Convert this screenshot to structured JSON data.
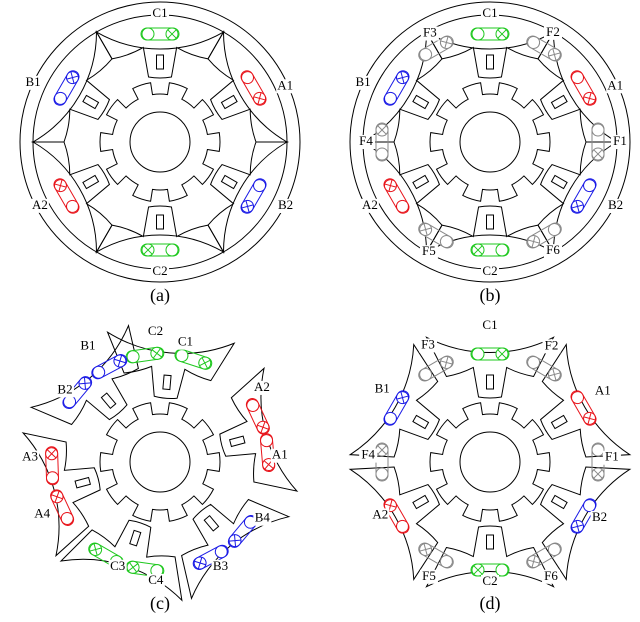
{
  "coil_colors": [
    "#e8141b",
    "#1a1ae6",
    "#1ec81e",
    "#888888"
  ],
  "panels": [
    {
      "caption": "(a)",
      "labels": [
        "C1",
        "B1",
        "A1",
        "A2",
        "B2",
        "C2"
      ]
    },
    {
      "caption": "(b)",
      "labels": [
        "C1",
        "F3",
        "F2",
        "B1",
        "A1",
        "F4",
        "F1",
        "A2",
        "B2",
        "F5",
        "C2",
        "F6"
      ]
    },
    {
      "caption": "(c)",
      "labels": [
        "C2",
        "C1",
        "B1",
        "A2",
        "B2",
        "A3",
        "A1",
        "A4",
        "B4",
        "C3",
        "C4",
        "B3"
      ]
    },
    {
      "caption": "(d)",
      "labels": [
        "C1",
        "F3",
        "F2",
        "B1",
        "A1",
        "F4",
        "F1",
        "A2",
        "B2",
        "F5",
        "C2",
        "F6"
      ]
    }
  ]
}
